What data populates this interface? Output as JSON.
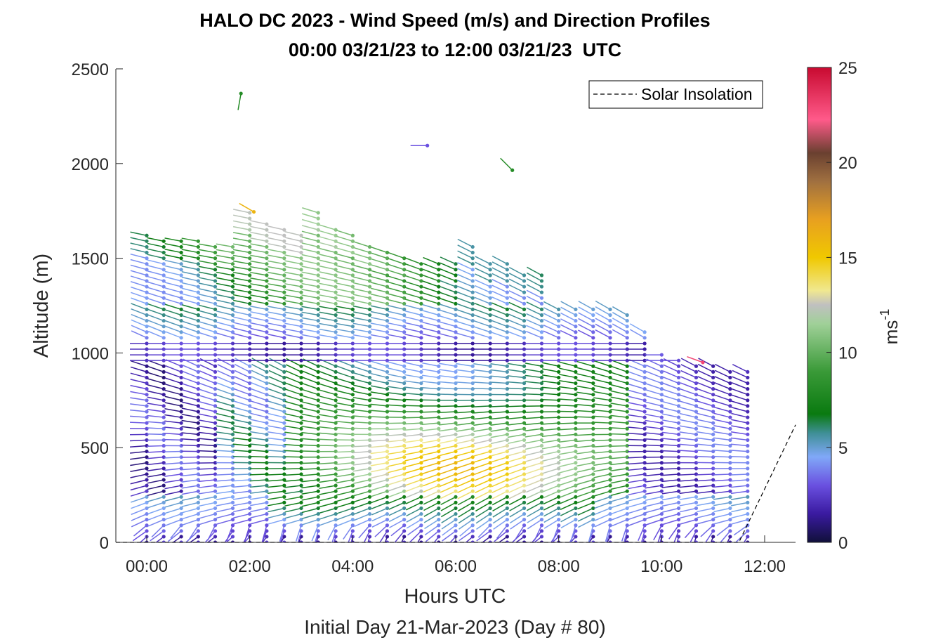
{
  "chart_data": {
    "type": "wind-barb-profile",
    "title": "HALO DC 2023 - Wind Speed (m/s) and Direction Profiles",
    "subtitle": "00:00 03/21/23 to 12:00 03/21/23  UTC",
    "xlabel": "Hours UTC",
    "xlabel2": "Initial Day 21-Mar-2023 (Day # 80)",
    "ylabel": "Altitude (m)",
    "xlim_hours": [
      -0.6,
      12.6
    ],
    "ylim": [
      0,
      2500
    ],
    "x_ticks": [
      {
        "value": 0,
        "label": "00:00"
      },
      {
        "value": 2,
        "label": "02:00"
      },
      {
        "value": 4,
        "label": "04:00"
      },
      {
        "value": 6,
        "label": "06:00"
      },
      {
        "value": 8,
        "label": "08:00"
      },
      {
        "value": 10,
        "label": "10:00"
      },
      {
        "value": 12,
        "label": "12:00"
      }
    ],
    "y_ticks": [
      0,
      500,
      1000,
      1500,
      2000,
      2500
    ],
    "legend": {
      "entries": [
        "Solar Insolation"
      ],
      "placement": "top-right"
    },
    "colorbar": {
      "label": "ms",
      "label_exponent": "-1",
      "range": [
        0,
        25
      ],
      "ticks": [
        0,
        5,
        10,
        15,
        20,
        25
      ]
    },
    "solar_insolation": {
      "x": [
        -0.6,
        11.3,
        11.5,
        12.6
      ],
      "y": [
        0,
        0,
        0,
        620
      ]
    },
    "profiles": [
      {
        "t": 0.0,
        "top": 1620
      },
      {
        "t": 0.33,
        "top": 1600
      },
      {
        "t": 0.67,
        "top": 1600
      },
      {
        "t": 1.0,
        "top": 1590
      },
      {
        "t": 1.33,
        "top": 1580
      },
      {
        "t": 1.67,
        "top": 1560
      },
      {
        "t": 2.0,
        "top": 1750
      },
      {
        "t": 2.33,
        "top": 1680
      },
      {
        "t": 2.67,
        "top": 1660
      },
      {
        "t": 3.0,
        "top": 1640
      },
      {
        "t": 3.33,
        "top": 1740
      },
      {
        "t": 3.67,
        "top": 1660
      },
      {
        "t": 4.0,
        "top": 1620
      },
      {
        "t": 4.33,
        "top": 1560
      },
      {
        "t": 4.67,
        "top": 1540
      },
      {
        "t": 5.0,
        "top": 1520
      },
      {
        "t": 5.33,
        "top": 1480
      },
      {
        "t": 5.67,
        "top": 1470
      },
      {
        "t": 6.0,
        "top": 1490
      },
      {
        "t": 6.33,
        "top": 1560
      },
      {
        "t": 6.67,
        "top": 1480
      },
      {
        "t": 7.0,
        "top": 1470
      },
      {
        "t": 7.33,
        "top": 1430
      },
      {
        "t": 7.67,
        "top": 1410
      },
      {
        "t": 8.0,
        "top": 1250
      },
      {
        "t": 8.33,
        "top": 1250
      },
      {
        "t": 8.67,
        "top": 1250
      },
      {
        "t": 9.0,
        "top": 1240
      },
      {
        "t": 9.33,
        "top": 1210
      },
      {
        "t": 9.67,
        "top": 1120
      },
      {
        "t": 10.0,
        "top": 1000
      },
      {
        "t": 10.33,
        "top": 980
      },
      {
        "t": 10.67,
        "top": 950
      },
      {
        "t": 11.0,
        "top": 950
      },
      {
        "t": 11.33,
        "top": 920
      },
      {
        "t": 11.67,
        "top": 900
      }
    ],
    "isolated_points": [
      {
        "t": 1.83,
        "alt": 2370,
        "speed": 8,
        "dir": 190
      },
      {
        "t": 5.45,
        "alt": 2095,
        "speed": 3,
        "dir": 270
      },
      {
        "t": 7.1,
        "alt": 1965,
        "speed": 8,
        "dir": 315
      },
      {
        "t": 2.08,
        "alt": 1745,
        "speed": 16,
        "dir": 300
      },
      {
        "t": 10.8,
        "alt": 950,
        "speed": 23,
        "dir": 290
      }
    ]
  }
}
